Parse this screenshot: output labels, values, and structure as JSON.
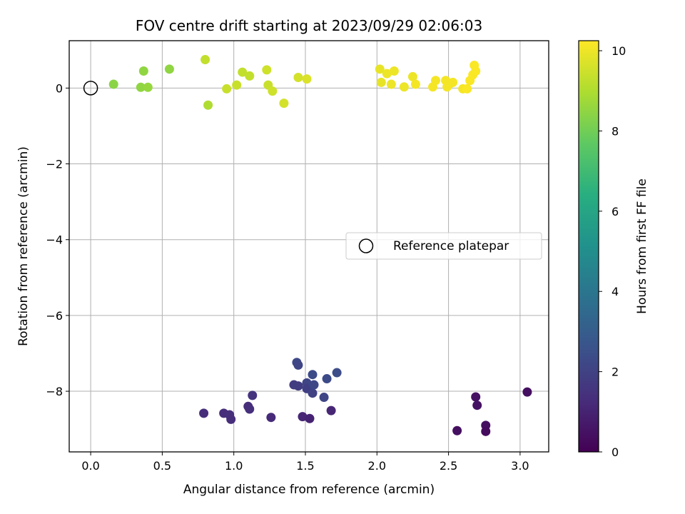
{
  "chart_data": {
    "type": "scatter",
    "title": "FOV centre drift starting at 2023/09/29 02:06:03",
    "xlabel": "Angular distance from reference (arcmin)",
    "ylabel": "Rotation from reference (arcmin)",
    "xlim": [
      -0.15,
      3.2
    ],
    "ylim": [
      -9.6,
      1.25
    ],
    "xticks": [
      0.0,
      0.5,
      1.0,
      1.5,
      2.0,
      2.5,
      3.0
    ],
    "xtick_labels": [
      "0.0",
      "0.5",
      "1.0",
      "1.5",
      "2.0",
      "2.5",
      "3.0"
    ],
    "yticks": [
      0,
      -2,
      -4,
      -6,
      -8
    ],
    "ytick_labels": [
      "0",
      "−2",
      "−4",
      "−6",
      "−8"
    ],
    "grid": true,
    "colormap": "viridis",
    "colorbar": {
      "label": "Hours from first FF file",
      "range": [
        0,
        10.25
      ],
      "ticks": [
        0,
        2,
        4,
        6,
        8,
        10
      ],
      "tick_labels": [
        "0",
        "2",
        "4",
        "6",
        "8",
        "10"
      ]
    },
    "legend": {
      "position": "center-right",
      "entries": [
        {
          "label": "Reference platepar",
          "marker": "open-circle"
        }
      ]
    },
    "reference_point": {
      "x": 0.0,
      "y": 0.0
    },
    "series": [
      {
        "values": [
          {
            "x": 0.16,
            "y": 0.1,
            "hours": 8.4
          },
          {
            "x": 0.35,
            "y": 0.02,
            "hours": 8.5
          },
          {
            "x": 0.37,
            "y": 0.45,
            "hours": 8.5
          },
          {
            "x": 0.4,
            "y": 0.02,
            "hours": 8.6
          },
          {
            "x": 0.55,
            "y": 0.5,
            "hours": 8.5
          },
          {
            "x": 0.8,
            "y": 0.75,
            "hours": 9.3
          },
          {
            "x": 0.82,
            "y": -0.45,
            "hours": 9.0
          },
          {
            "x": 0.95,
            "y": -0.02,
            "hours": 9.4
          },
          {
            "x": 1.02,
            "y": 0.08,
            "hours": 9.4
          },
          {
            "x": 1.06,
            "y": 0.42,
            "hours": 9.3
          },
          {
            "x": 1.11,
            "y": 0.32,
            "hours": 9.3
          },
          {
            "x": 1.23,
            "y": 0.48,
            "hours": 9.5
          },
          {
            "x": 1.24,
            "y": 0.08,
            "hours": 9.4
          },
          {
            "x": 1.27,
            "y": -0.08,
            "hours": 9.5
          },
          {
            "x": 1.35,
            "y": -0.4,
            "hours": 9.6
          },
          {
            "x": 1.45,
            "y": 0.28,
            "hours": 9.6
          },
          {
            "x": 1.51,
            "y": 0.24,
            "hours": 9.7
          },
          {
            "x": 2.02,
            "y": 0.5,
            "hours": 9.9
          },
          {
            "x": 2.03,
            "y": 0.15,
            "hours": 9.9
          },
          {
            "x": 2.07,
            "y": 0.38,
            "hours": 10.0
          },
          {
            "x": 2.1,
            "y": 0.1,
            "hours": 10.0
          },
          {
            "x": 2.12,
            "y": 0.45,
            "hours": 10.0
          },
          {
            "x": 2.19,
            "y": 0.03,
            "hours": 10.0
          },
          {
            "x": 2.25,
            "y": 0.3,
            "hours": 10.0
          },
          {
            "x": 2.27,
            "y": 0.1,
            "hours": 10.1
          },
          {
            "x": 2.39,
            "y": 0.03,
            "hours": 10.1
          },
          {
            "x": 2.41,
            "y": 0.2,
            "hours": 10.1
          },
          {
            "x": 2.48,
            "y": 0.2,
            "hours": 10.1
          },
          {
            "x": 2.49,
            "y": 0.03,
            "hours": 10.1
          },
          {
            "x": 2.51,
            "y": 0.12,
            "hours": 10.1
          },
          {
            "x": 2.53,
            "y": 0.15,
            "hours": 10.1
          },
          {
            "x": 2.6,
            "y": -0.02,
            "hours": 10.1
          },
          {
            "x": 2.63,
            "y": -0.02,
            "hours": 10.2
          },
          {
            "x": 2.65,
            "y": 0.2,
            "hours": 10.2
          },
          {
            "x": 2.67,
            "y": 0.35,
            "hours": 10.2
          },
          {
            "x": 2.68,
            "y": 0.6,
            "hours": 10.2
          },
          {
            "x": 2.69,
            "y": 0.45,
            "hours": 10.2
          },
          {
            "x": 0.79,
            "y": -8.58,
            "hours": 1.3
          },
          {
            "x": 0.93,
            "y": -8.58,
            "hours": 1.3
          },
          {
            "x": 0.97,
            "y": -8.62,
            "hours": 1.4
          },
          {
            "x": 0.98,
            "y": -8.74,
            "hours": 1.3
          },
          {
            "x": 1.1,
            "y": -8.4,
            "hours": 1.3
          },
          {
            "x": 1.11,
            "y": -8.47,
            "hours": 1.4
          },
          {
            "x": 1.13,
            "y": -8.11,
            "hours": 1.5
          },
          {
            "x": 1.26,
            "y": -8.69,
            "hours": 1.2
          },
          {
            "x": 1.42,
            "y": -7.83,
            "hours": 1.8
          },
          {
            "x": 1.44,
            "y": -7.24,
            "hours": 2.2
          },
          {
            "x": 1.45,
            "y": -7.31,
            "hours": 2.1
          },
          {
            "x": 1.45,
            "y": -7.86,
            "hours": 1.8
          },
          {
            "x": 1.48,
            "y": -8.67,
            "hours": 1.1
          },
          {
            "x": 1.51,
            "y": -7.78,
            "hours": 2.1
          },
          {
            "x": 1.51,
            "y": -7.93,
            "hours": 1.9
          },
          {
            "x": 1.53,
            "y": -8.72,
            "hours": 1.0
          },
          {
            "x": 1.55,
            "y": -7.56,
            "hours": 2.3
          },
          {
            "x": 1.55,
            "y": -8.05,
            "hours": 2.0
          },
          {
            "x": 1.56,
            "y": -7.83,
            "hours": 2.2
          },
          {
            "x": 1.63,
            "y": -8.16,
            "hours": 2.1
          },
          {
            "x": 1.65,
            "y": -7.67,
            "hours": 2.3
          },
          {
            "x": 1.68,
            "y": -8.51,
            "hours": 1.1
          },
          {
            "x": 1.72,
            "y": -7.51,
            "hours": 2.4
          },
          {
            "x": 2.56,
            "y": -9.04,
            "hours": 0.4
          },
          {
            "x": 2.69,
            "y": -8.15,
            "hours": 0.5
          },
          {
            "x": 2.7,
            "y": -8.37,
            "hours": 0.5
          },
          {
            "x": 2.76,
            "y": -8.9,
            "hours": 0.4
          },
          {
            "x": 2.76,
            "y": -9.06,
            "hours": 0.3
          },
          {
            "x": 3.05,
            "y": -8.02,
            "hours": 0.4
          }
        ]
      }
    ]
  }
}
